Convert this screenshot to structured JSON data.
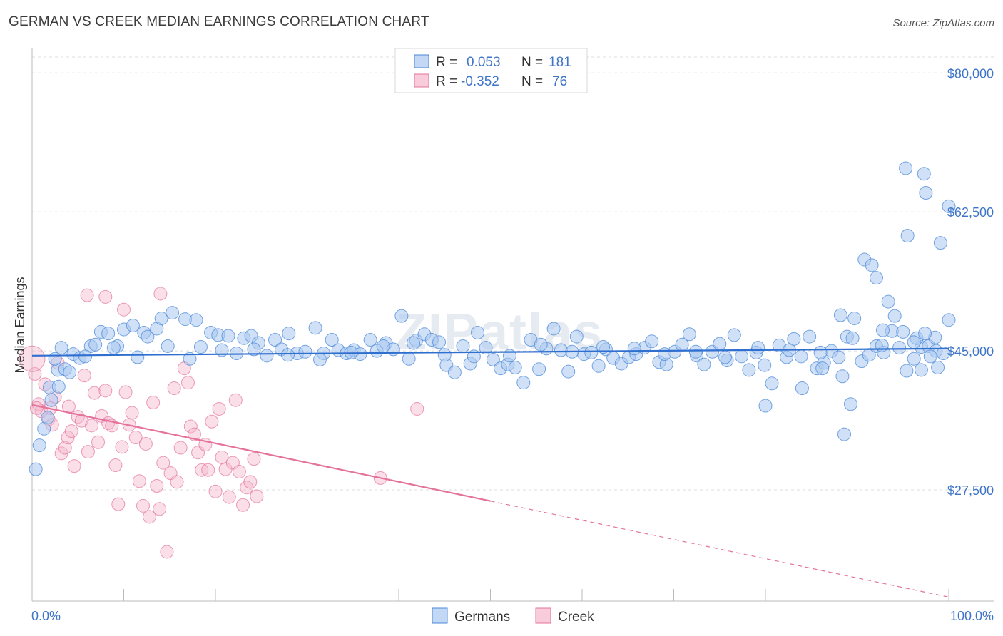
{
  "title": "GERMAN VS CREEK MEDIAN EARNINGS CORRELATION CHART",
  "source": "Source: ZipAtlas.com",
  "watermark": "ZIPatlas",
  "colors": {
    "germans": "#4a88d8",
    "germans_fill": "#a9c8f0",
    "creek": "#e4729b",
    "creek_fill": "#f5b6cb",
    "axis_label": "#3e74c9"
  },
  "legend_top": [
    {
      "r_label": "R =",
      "r_value": "0.053",
      "n_label": "N =",
      "n_value": "181"
    },
    {
      "r_label": "R =",
      "r_value": "-0.352",
      "n_label": "N =",
      "n_value": "76"
    }
  ],
  "legend_bottom": [
    "Germans",
    "Creek"
  ],
  "chart_data": {
    "type": "scatter",
    "xlabel": "",
    "ylabel": "Median Earnings",
    "xlim": [
      0,
      100
    ],
    "ylim": [
      13500,
      82000
    ],
    "x_tick_labels": [
      "0.0%",
      "100.0%"
    ],
    "y_ticks": [
      27500,
      45000,
      62500,
      80000
    ],
    "y_tick_labels": [
      "$27,500",
      "$45,000",
      "$62,500",
      "$80,000"
    ],
    "grid": true,
    "series": [
      {
        "name": "Germans",
        "trend": {
          "x": [
            0,
            100
          ],
          "y": [
            44400,
            45300
          ],
          "dashed_from": null
        },
        "points": [
          [
            0.4,
            30100
          ],
          [
            0.8,
            33100
          ],
          [
            1.3,
            35200
          ],
          [
            1.7,
            36600
          ],
          [
            2.1,
            38800
          ],
          [
            1.9,
            40400
          ],
          [
            2.9,
            40500
          ],
          [
            2.8,
            42600
          ],
          [
            3.6,
            42700
          ],
          [
            4.1,
            42300
          ],
          [
            4.5,
            44600
          ],
          [
            5.2,
            44100
          ],
          [
            6.4,
            45600
          ],
          [
            6.9,
            45800
          ],
          [
            7.5,
            47400
          ],
          [
            8.3,
            47200
          ],
          [
            9.3,
            45600
          ],
          [
            10.0,
            47700
          ],
          [
            11.0,
            48200
          ],
          [
            12.2,
            47300
          ],
          [
            12.6,
            46800
          ],
          [
            13.6,
            47800
          ],
          [
            14.1,
            49100
          ],
          [
            15.3,
            49800
          ],
          [
            16.7,
            49000
          ],
          [
            17.9,
            48900
          ],
          [
            18.4,
            45500
          ],
          [
            19.5,
            47300
          ],
          [
            20.3,
            47000
          ],
          [
            21.4,
            46900
          ],
          [
            22.3,
            44700
          ],
          [
            23.1,
            46600
          ],
          [
            23.9,
            46900
          ],
          [
            24.7,
            46000
          ],
          [
            25.6,
            44400
          ],
          [
            26.5,
            46400
          ],
          [
            27.2,
            45200
          ],
          [
            28.0,
            47200
          ],
          [
            28.9,
            44700
          ],
          [
            29.8,
            44900
          ],
          [
            30.9,
            47900
          ],
          [
            31.8,
            44700
          ],
          [
            32.7,
            46400
          ],
          [
            33.4,
            45100
          ],
          [
            34.3,
            44700
          ],
          [
            35.1,
            45100
          ],
          [
            35.8,
            44600
          ],
          [
            36.9,
            46400
          ],
          [
            37.6,
            45000
          ],
          [
            38.6,
            46000
          ],
          [
            39.4,
            45200
          ],
          [
            40.3,
            49400
          ],
          [
            41.1,
            44000
          ],
          [
            41.9,
            46300
          ],
          [
            42.8,
            47100
          ],
          [
            43.6,
            46400
          ],
          [
            44.4,
            46100
          ],
          [
            45.2,
            43200
          ],
          [
            46.1,
            42300
          ],
          [
            47.0,
            45600
          ],
          [
            47.8,
            43400
          ],
          [
            48.6,
            47300
          ],
          [
            49.5,
            45400
          ],
          [
            50.3,
            43900
          ],
          [
            51.1,
            42800
          ],
          [
            51.9,
            43300
          ],
          [
            52.7,
            42900
          ],
          [
            53.6,
            41000
          ],
          [
            54.4,
            46400
          ],
          [
            55.3,
            42700
          ],
          [
            56.1,
            45300
          ],
          [
            56.9,
            47800
          ],
          [
            57.7,
            45100
          ],
          [
            58.5,
            42400
          ],
          [
            59.4,
            46800
          ],
          [
            60.2,
            44600
          ],
          [
            61.0,
            44800
          ],
          [
            61.8,
            43100
          ],
          [
            62.6,
            45200
          ],
          [
            63.4,
            44100
          ],
          [
            64.3,
            43400
          ],
          [
            65.1,
            44200
          ],
          [
            65.9,
            44600
          ],
          [
            66.8,
            45400
          ],
          [
            67.6,
            46200
          ],
          [
            68.4,
            43600
          ],
          [
            69.2,
            43300
          ],
          [
            70.1,
            44900
          ],
          [
            70.9,
            45800
          ],
          [
            71.7,
            47100
          ],
          [
            72.5,
            44400
          ],
          [
            73.3,
            43300
          ],
          [
            74.2,
            44900
          ],
          [
            75.0,
            45900
          ],
          [
            75.8,
            43800
          ],
          [
            76.6,
            47000
          ],
          [
            77.4,
            44300
          ],
          [
            78.2,
            42600
          ],
          [
            79.0,
            44800
          ],
          [
            79.9,
            43200
          ],
          [
            80.7,
            40900
          ],
          [
            81.5,
            45700
          ],
          [
            82.3,
            44200
          ],
          [
            83.1,
            46500
          ],
          [
            83.9,
            44300
          ],
          [
            84.8,
            46800
          ],
          [
            85.6,
            42800
          ],
          [
            86.4,
            43500
          ],
          [
            87.2,
            45000
          ],
          [
            88.0,
            44200
          ],
          [
            88.9,
            46800
          ],
          [
            89.7,
            49100
          ],
          [
            90.5,
            43700
          ],
          [
            91.3,
            44500
          ],
          [
            92.1,
            45600
          ],
          [
            92.9,
            44800
          ],
          [
            93.8,
            47500
          ],
          [
            94.6,
            45400
          ],
          [
            95.4,
            42500
          ],
          [
            96.2,
            44000
          ],
          [
            97.0,
            45500
          ],
          [
            97.8,
            45600
          ],
          [
            98.6,
            45000
          ],
          [
            99.4,
            44700
          ],
          [
            2.5,
            44000
          ],
          [
            3.2,
            45400
          ],
          [
            5.8,
            44300
          ],
          [
            8.9,
            45400
          ],
          [
            11.5,
            44200
          ],
          [
            14.8,
            45600
          ],
          [
            17.2,
            44000
          ],
          [
            20.7,
            45100
          ],
          [
            24.2,
            45200
          ],
          [
            27.9,
            44500
          ],
          [
            31.4,
            43900
          ],
          [
            34.8,
            44800
          ],
          [
            38.3,
            45600
          ],
          [
            41.6,
            46000
          ],
          [
            45.0,
            44500
          ],
          [
            48.2,
            44300
          ],
          [
            52.1,
            44400
          ],
          [
            55.5,
            45800
          ],
          [
            58.9,
            44900
          ],
          [
            62.3,
            45500
          ],
          [
            65.7,
            45300
          ],
          [
            69.0,
            44600
          ],
          [
            72.4,
            44900
          ],
          [
            75.6,
            44200
          ],
          [
            79.2,
            45400
          ],
          [
            82.6,
            45100
          ],
          [
            86.0,
            44800
          ],
          [
            89.5,
            46600
          ],
          [
            92.7,
            45700
          ],
          [
            96.5,
            46600
          ],
          [
            98.5,
            46700
          ],
          [
            98.0,
            44300
          ],
          [
            97.0,
            42600
          ],
          [
            80.0,
            38100
          ],
          [
            84.0,
            40300
          ],
          [
            86.2,
            42800
          ],
          [
            88.4,
            41800
          ],
          [
            89.3,
            38300
          ],
          [
            88.6,
            34500
          ],
          [
            88.2,
            49500
          ],
          [
            90.8,
            56500
          ],
          [
            91.6,
            55800
          ],
          [
            92.1,
            54200
          ],
          [
            93.4,
            51200
          ],
          [
            94.1,
            49400
          ],
          [
            95.0,
            47400
          ],
          [
            96.2,
            46100
          ],
          [
            97.4,
            47200
          ],
          [
            98.8,
            42900
          ],
          [
            95.5,
            59500
          ],
          [
            97.5,
            64900
          ],
          [
            99.1,
            58600
          ],
          [
            95.3,
            68000
          ],
          [
            97.3,
            67300
          ],
          [
            100.0,
            63200
          ],
          [
            92.8,
            47600
          ],
          [
            100.0,
            48900
          ]
        ]
      },
      {
        "name": "Creek",
        "trend": {
          "x": [
            0,
            50,
            100
          ],
          "y": [
            38200,
            26100,
            14000
          ],
          "dashed_from": 50
        },
        "points": [
          [
            0.3,
            42100
          ],
          [
            0.7,
            38300
          ],
          [
            1.0,
            37400
          ],
          [
            1.4,
            40800
          ],
          [
            1.8,
            36400
          ],
          [
            2.2,
            35700
          ],
          [
            2.5,
            39200
          ],
          [
            2.8,
            43500
          ],
          [
            3.2,
            32100
          ],
          [
            3.6,
            32800
          ],
          [
            3.9,
            34100
          ],
          [
            4.3,
            34900
          ],
          [
            4.6,
            30500
          ],
          [
            5.0,
            36700
          ],
          [
            5.4,
            36200
          ],
          [
            5.7,
            41900
          ],
          [
            6.1,
            32300
          ],
          [
            6.5,
            35600
          ],
          [
            6.8,
            39700
          ],
          [
            7.2,
            33500
          ],
          [
            7.6,
            36800
          ],
          [
            8.0,
            40000
          ],
          [
            8.3,
            35900
          ],
          [
            8.7,
            35600
          ],
          [
            9.1,
            30600
          ],
          [
            9.4,
            25700
          ],
          [
            9.8,
            32900
          ],
          [
            10.2,
            39800
          ],
          [
            10.6,
            35700
          ],
          [
            10.9,
            37200
          ],
          [
            11.3,
            34100
          ],
          [
            11.7,
            28600
          ],
          [
            12.1,
            25500
          ],
          [
            12.4,
            33300
          ],
          [
            12.8,
            24100
          ],
          [
            13.2,
            38500
          ],
          [
            13.6,
            28000
          ],
          [
            13.9,
            25100
          ],
          [
            14.3,
            30900
          ],
          [
            14.7,
            19700
          ],
          [
            15.1,
            29600
          ],
          [
            15.5,
            40300
          ],
          [
            15.8,
            28500
          ],
          [
            16.2,
            32800
          ],
          [
            16.6,
            42800
          ],
          [
            17.0,
            41000
          ],
          [
            17.3,
            35500
          ],
          [
            17.7,
            34500
          ],
          [
            18.1,
            32200
          ],
          [
            18.5,
            30000
          ],
          [
            18.9,
            33200
          ],
          [
            19.2,
            30000
          ],
          [
            19.6,
            36100
          ],
          [
            20.0,
            27300
          ],
          [
            20.4,
            37700
          ],
          [
            20.7,
            31600
          ],
          [
            21.1,
            30100
          ],
          [
            21.5,
            26600
          ],
          [
            21.9,
            30900
          ],
          [
            22.2,
            38800
          ],
          [
            22.6,
            29800
          ],
          [
            23.0,
            25600
          ],
          [
            23.4,
            27800
          ],
          [
            23.8,
            28500
          ],
          [
            24.2,
            31400
          ],
          [
            24.5,
            26700
          ],
          [
            2.0,
            37800
          ],
          [
            4.0,
            38000
          ],
          [
            6.0,
            52000
          ],
          [
            8.0,
            51800
          ],
          [
            10.0,
            50200
          ],
          [
            14.0,
            52200
          ],
          [
            0.0,
            44000
          ],
          [
            0.5,
            37800
          ],
          [
            38.0,
            29000
          ],
          [
            42.0,
            37700
          ]
        ]
      }
    ]
  }
}
